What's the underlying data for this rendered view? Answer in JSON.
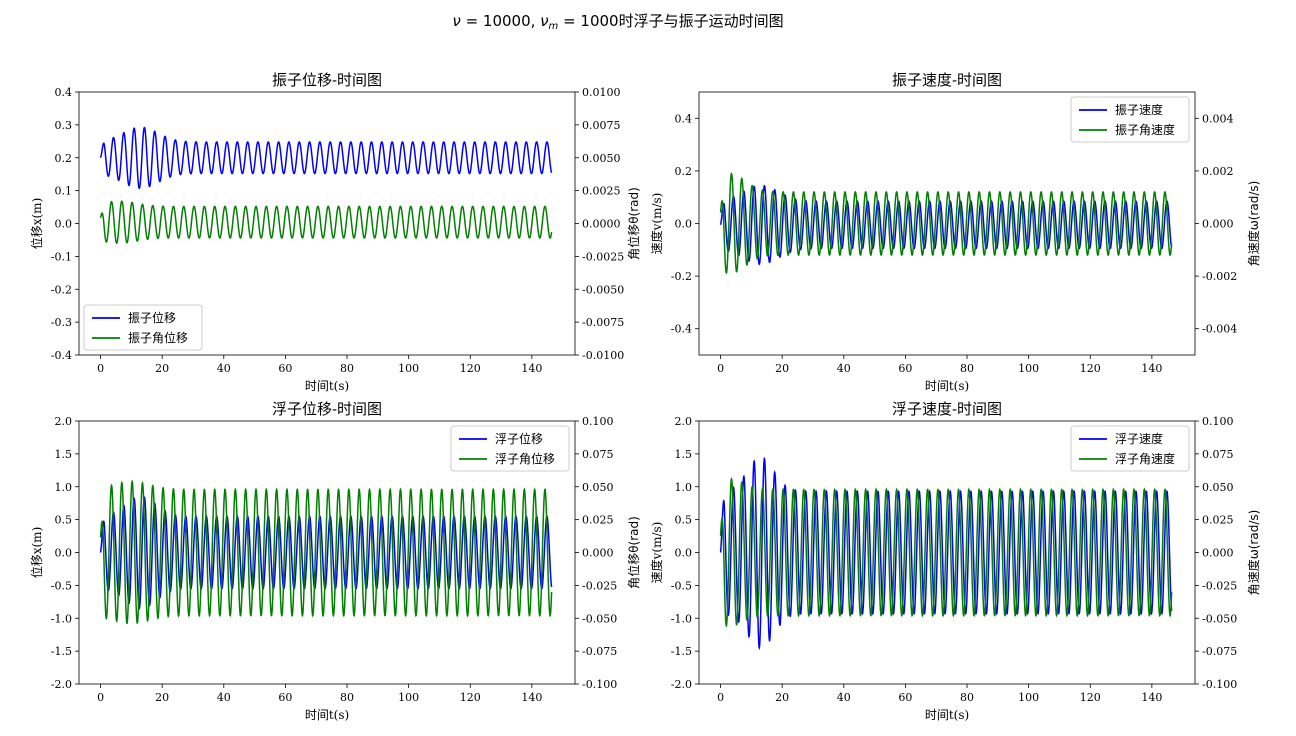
{
  "figure_title": "ν = 10000, ν_m = 1000时浮子与振子运动时间图",
  "chart_data": [
    {
      "type": "line",
      "title": "振子位移-时间图",
      "xlabel": "时间t(s)",
      "ylabel": "位移x(m)",
      "ylabel_right": "角位移θ(rad)",
      "xlim": [
        -7,
        154
      ],
      "xticks": [
        0,
        20,
        40,
        60,
        80,
        100,
        120,
        140
      ],
      "ylim": [
        -0.4,
        0.4
      ],
      "yticks": [
        "0.4",
        "0.3",
        "0.2",
        "0.1",
        "0.0",
        "-0.1",
        "-0.2",
        "-0.3",
        "-0.4"
      ],
      "ylim_right": [
        -0.01,
        0.01
      ],
      "yticks_right": [
        "0.0100",
        "0.0075",
        "0.0050",
        "0.0025",
        "0.0000",
        "-0.0025",
        "-0.0050",
        "-0.0075",
        "-0.0100"
      ],
      "legend_loc": "lower-left",
      "series": [
        {
          "name": "振子位移",
          "axis": "left",
          "color": "#0000ff",
          "t_end": 146.4,
          "offset": 0.2,
          "amplitude": 0.048,
          "period": 3.35,
          "transient": {
            "extra": 0.045,
            "peak_t": 13,
            "width": 8
          }
        },
        {
          "name": "振子角位移",
          "axis": "right",
          "color": "#008000",
          "t_end": 146.4,
          "offset": 0.0001,
          "amplitude": 0.0012,
          "period": 3.35,
          "transient": {
            "extra": 0.0004,
            "peak_t": 6,
            "width": 8
          }
        }
      ]
    },
    {
      "type": "line",
      "title": "振子速度-时间图",
      "xlabel": "时间t(s)",
      "ylabel": "速度v(m/s)",
      "ylabel_right": "角速度ω(rad/s)",
      "xlim": [
        -7,
        154
      ],
      "xticks": [
        0,
        20,
        40,
        60,
        80,
        100,
        120,
        140
      ],
      "ylim": [
        -0.5,
        0.5
      ],
      "yticks": [
        "0.4",
        "0.2",
        "0.0",
        "-0.2",
        "-0.4"
      ],
      "ylim_right": [
        -0.005,
        0.005
      ],
      "yticks_right": [
        "0.004",
        "0.002",
        "0.000",
        "-0.002",
        "-0.004"
      ],
      "legend_loc": "upper-right",
      "series": [
        {
          "name": "振子速度",
          "axis": "left",
          "color": "#0000ff",
          "t_end": 146.4,
          "offset": -0.005,
          "amplitude": 0.09,
          "period": 3.35,
          "transient": {
            "extra": 0.06,
            "peak_t": 13,
            "width": 8
          }
        },
        {
          "name": "振子角速度",
          "axis": "right",
          "color": "#008000",
          "t_end": 146.4,
          "offset": 0.0,
          "amplitude": 0.0012,
          "period": 3.35,
          "transient": {
            "extra": 0.0007,
            "peak_t": 3,
            "width": 7
          }
        }
      ]
    },
    {
      "type": "line",
      "title": "浮子位移-时间图",
      "xlabel": "时间t(s)",
      "ylabel": "位移x(m)",
      "ylabel_right": "角位移θ(rad)",
      "xlim": [
        -7,
        154
      ],
      "xticks": [
        0,
        20,
        40,
        60,
        80,
        100,
        120,
        140
      ],
      "ylim": [
        -2.0,
        2.0
      ],
      "yticks": [
        "2.0",
        "1.5",
        "1.0",
        "0.5",
        "0.0",
        "-0.5",
        "-1.0",
        "-1.5",
        "-2.0"
      ],
      "ylim_right": [
        -0.1,
        0.1
      ],
      "yticks_right": [
        "0.100",
        "0.075",
        "0.050",
        "0.025",
        "0.000",
        "-0.025",
        "-0.050",
        "-0.075",
        "-0.100"
      ],
      "legend_loc": "upper-right",
      "series": [
        {
          "name": "浮子位移",
          "axis": "left",
          "color": "#0000ff",
          "t_end": 146.4,
          "offset": 0.0,
          "amplitude": 0.55,
          "period": 3.35,
          "transient": {
            "extra": 0.3,
            "peak_t": 13,
            "width": 7
          }
        },
        {
          "name": "浮子角位移",
          "axis": "right",
          "color": "#008000",
          "t_end": 146.4,
          "offset": 0.0,
          "amplitude": 0.048,
          "period": 3.35,
          "transient": {
            "extra": 0.006,
            "peak_t": 10,
            "width": 8
          }
        }
      ]
    },
    {
      "type": "line",
      "title": "浮子速度-时间图",
      "xlabel": "时间t(s)",
      "ylabel": "速度v(m/s)",
      "ylabel_right": "角速度ω(rad/s)",
      "xlim": [
        -7,
        154
      ],
      "xticks": [
        0,
        20,
        40,
        60,
        80,
        100,
        120,
        140
      ],
      "ylim": [
        -2.0,
        2.0
      ],
      "yticks": [
        "2.0",
        "1.5",
        "1.0",
        "0.5",
        "0.0",
        "-0.5",
        "-1.0",
        "-1.5",
        "-2.0"
      ],
      "ylim_right": [
        -0.1,
        0.1
      ],
      "yticks_right": [
        "0.100",
        "0.075",
        "0.050",
        "0.025",
        "0.000",
        "-0.025",
        "-0.050",
        "-0.075",
        "-0.100"
      ],
      "legend_loc": "upper-right",
      "series": [
        {
          "name": "浮子速度",
          "axis": "left",
          "color": "#0000ff",
          "t_end": 146.4,
          "offset": 0.0,
          "amplitude": 0.93,
          "period": 3.35,
          "transient": {
            "extra": 0.52,
            "peak_t": 13,
            "width": 6
          }
        },
        {
          "name": "浮子角速度",
          "axis": "right",
          "color": "#008000",
          "t_end": 146.4,
          "offset": 0.0,
          "amplitude": 0.048,
          "period": 3.35,
          "transient": {
            "extra": 0.008,
            "peak_t": 3,
            "width": 6
          }
        }
      ]
    }
  ]
}
